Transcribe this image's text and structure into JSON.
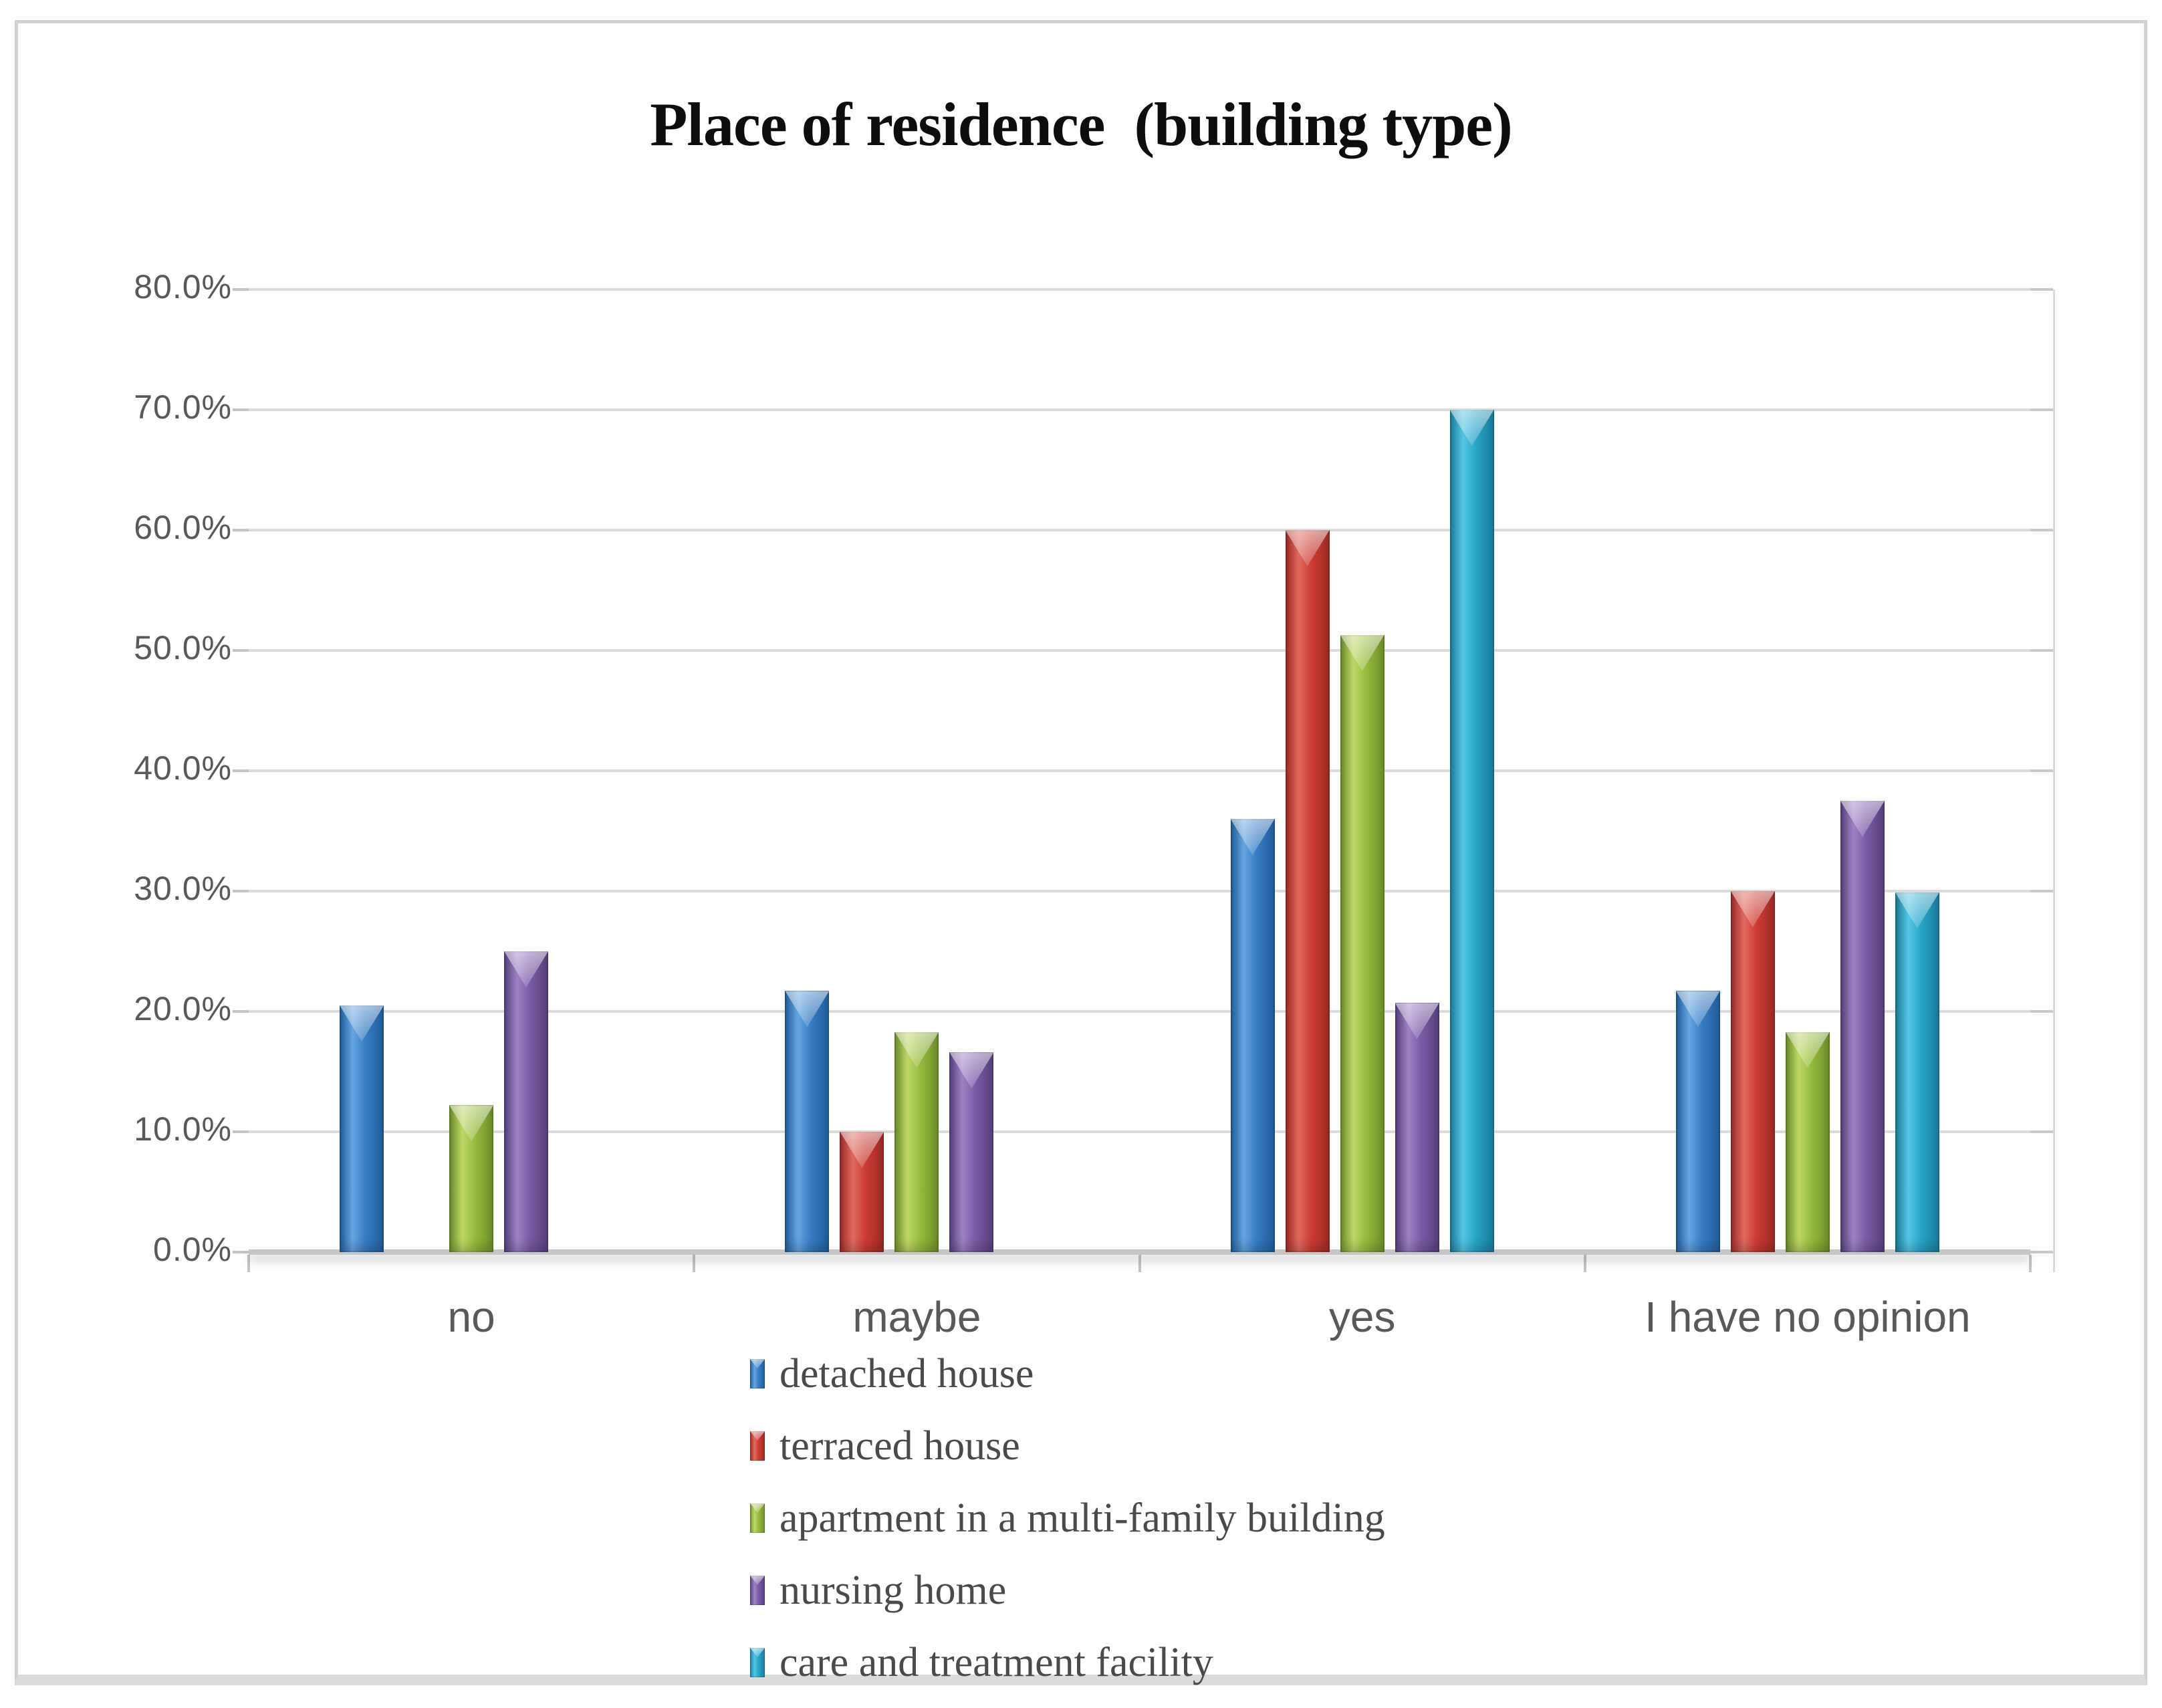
{
  "title": "Place of residence  (building type)",
  "chart_data": {
    "type": "bar",
    "title": "Place of residence  (building type)",
    "categories": [
      "no",
      "maybe",
      "yes",
      "I have no opinion"
    ],
    "series": [
      {
        "name": "detached house",
        "color": "#367DC4",
        "color_light": "#66A5E0",
        "color_dark": "#215E9C",
        "values": [
          20.5,
          21.7,
          36.0,
          21.7
        ]
      },
      {
        "name": "terraced house",
        "color": "#CC3C33",
        "color_light": "#E06A60",
        "color_dark": "#9E2B25",
        "values": [
          0,
          10.0,
          60.0,
          30.0
        ]
      },
      {
        "name": "apartment in a multi-family building",
        "color": "#97BB3D",
        "color_light": "#BCD867",
        "color_dark": "#6F8F2A",
        "values": [
          12.2,
          18.3,
          51.3,
          18.3
        ]
      },
      {
        "name": "nursing home",
        "color": "#7A5BA6",
        "color_light": "#9D82C4",
        "color_dark": "#58407E",
        "values": [
          25.0,
          16.6,
          20.7,
          37.5
        ]
      },
      {
        "name": "care and treatment facility",
        "color": "#27A5C9",
        "color_light": "#55C6E4",
        "color_dark": "#1A7D9B",
        "values": [
          0,
          0,
          70.0,
          29.9
        ]
      }
    ],
    "xlabel": "",
    "ylabel": "",
    "ylim": [
      0,
      80
    ],
    "ytick_step": 10,
    "yticks": [
      "80.0%",
      "70.0%",
      "60.0%",
      "50.0%",
      "40.0%",
      "30.0%",
      "20.0%",
      "10.0%",
      "0.0%"
    ],
    "grid": "horizontal",
    "legend_position": "bottom"
  },
  "colors": {
    "frame_border": "#d2d2d2",
    "frame_bottom": "#dbdbdb",
    "gridline": "#dbdbdb",
    "baseline": "#c6c6c6",
    "axis_text": "#595959",
    "legend_text": "#4a4a4a",
    "title_text": "#0d0d0d",
    "background": "#ffffff"
  }
}
